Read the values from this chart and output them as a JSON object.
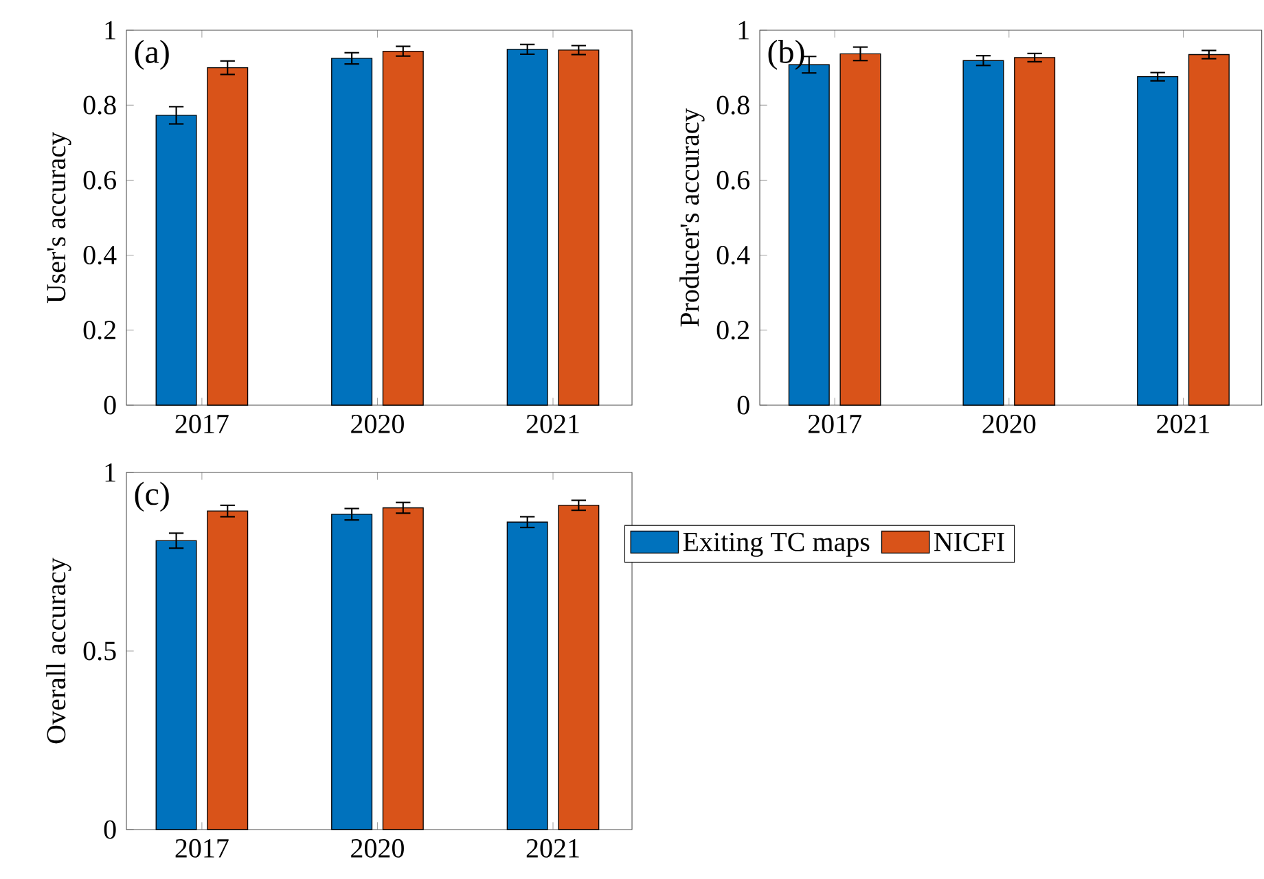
{
  "chart_data": [
    {
      "type": "bar",
      "categories": [
        "2017",
        "2020",
        "2021"
      ],
      "ylabel": "User's accuracy",
      "ylim": [
        0,
        1
      ],
      "yticks": [
        0,
        0.2,
        0.4,
        0.6,
        0.8,
        1
      ],
      "annotations": [
        "(a)"
      ],
      "legend": false,
      "series": [
        {
          "color": "#0072bd",
          "values": [
            0.773,
            0.925,
            0.949
          ],
          "errors": [
            0.023,
            0.015,
            0.013
          ]
        },
        {
          "color": "#d95319",
          "values": [
            0.9,
            0.944,
            0.947
          ],
          "errors": [
            0.018,
            0.013,
            0.012
          ]
        }
      ]
    },
    {
      "type": "bar",
      "categories": [
        "2017",
        "2020",
        "2021"
      ],
      "ylabel": "Producer's accuracy",
      "ylim": [
        0,
        1
      ],
      "yticks": [
        0,
        0.2,
        0.4,
        0.6,
        0.8,
        1
      ],
      "annotations": [
        "(b)"
      ],
      "legend": false,
      "series": [
        {
          "color": "#0072bd",
          "values": [
            0.908,
            0.919,
            0.876
          ],
          "errors": [
            0.022,
            0.013,
            0.011
          ]
        },
        {
          "color": "#d95319",
          "values": [
            0.937,
            0.927,
            0.935
          ],
          "errors": [
            0.018,
            0.011,
            0.011
          ]
        }
      ]
    },
    {
      "type": "bar",
      "categories": [
        "2017",
        "2020",
        "2021"
      ],
      "ylabel": "Overall accuracy",
      "ylim": [
        0,
        1
      ],
      "yticks": [
        0,
        0.5,
        1
      ],
      "annotations": [
        "(c)"
      ],
      "legend": "right",
      "series": [
        {
          "name": "Exiting TC maps",
          "color": "#0072bd",
          "values": [
            0.809,
            0.883,
            0.861
          ],
          "errors": [
            0.021,
            0.016,
            0.015
          ]
        },
        {
          "name": "NICFI",
          "color": "#d95319",
          "values": [
            0.892,
            0.901,
            0.908
          ],
          "errors": [
            0.016,
            0.015,
            0.014
          ]
        }
      ]
    }
  ]
}
